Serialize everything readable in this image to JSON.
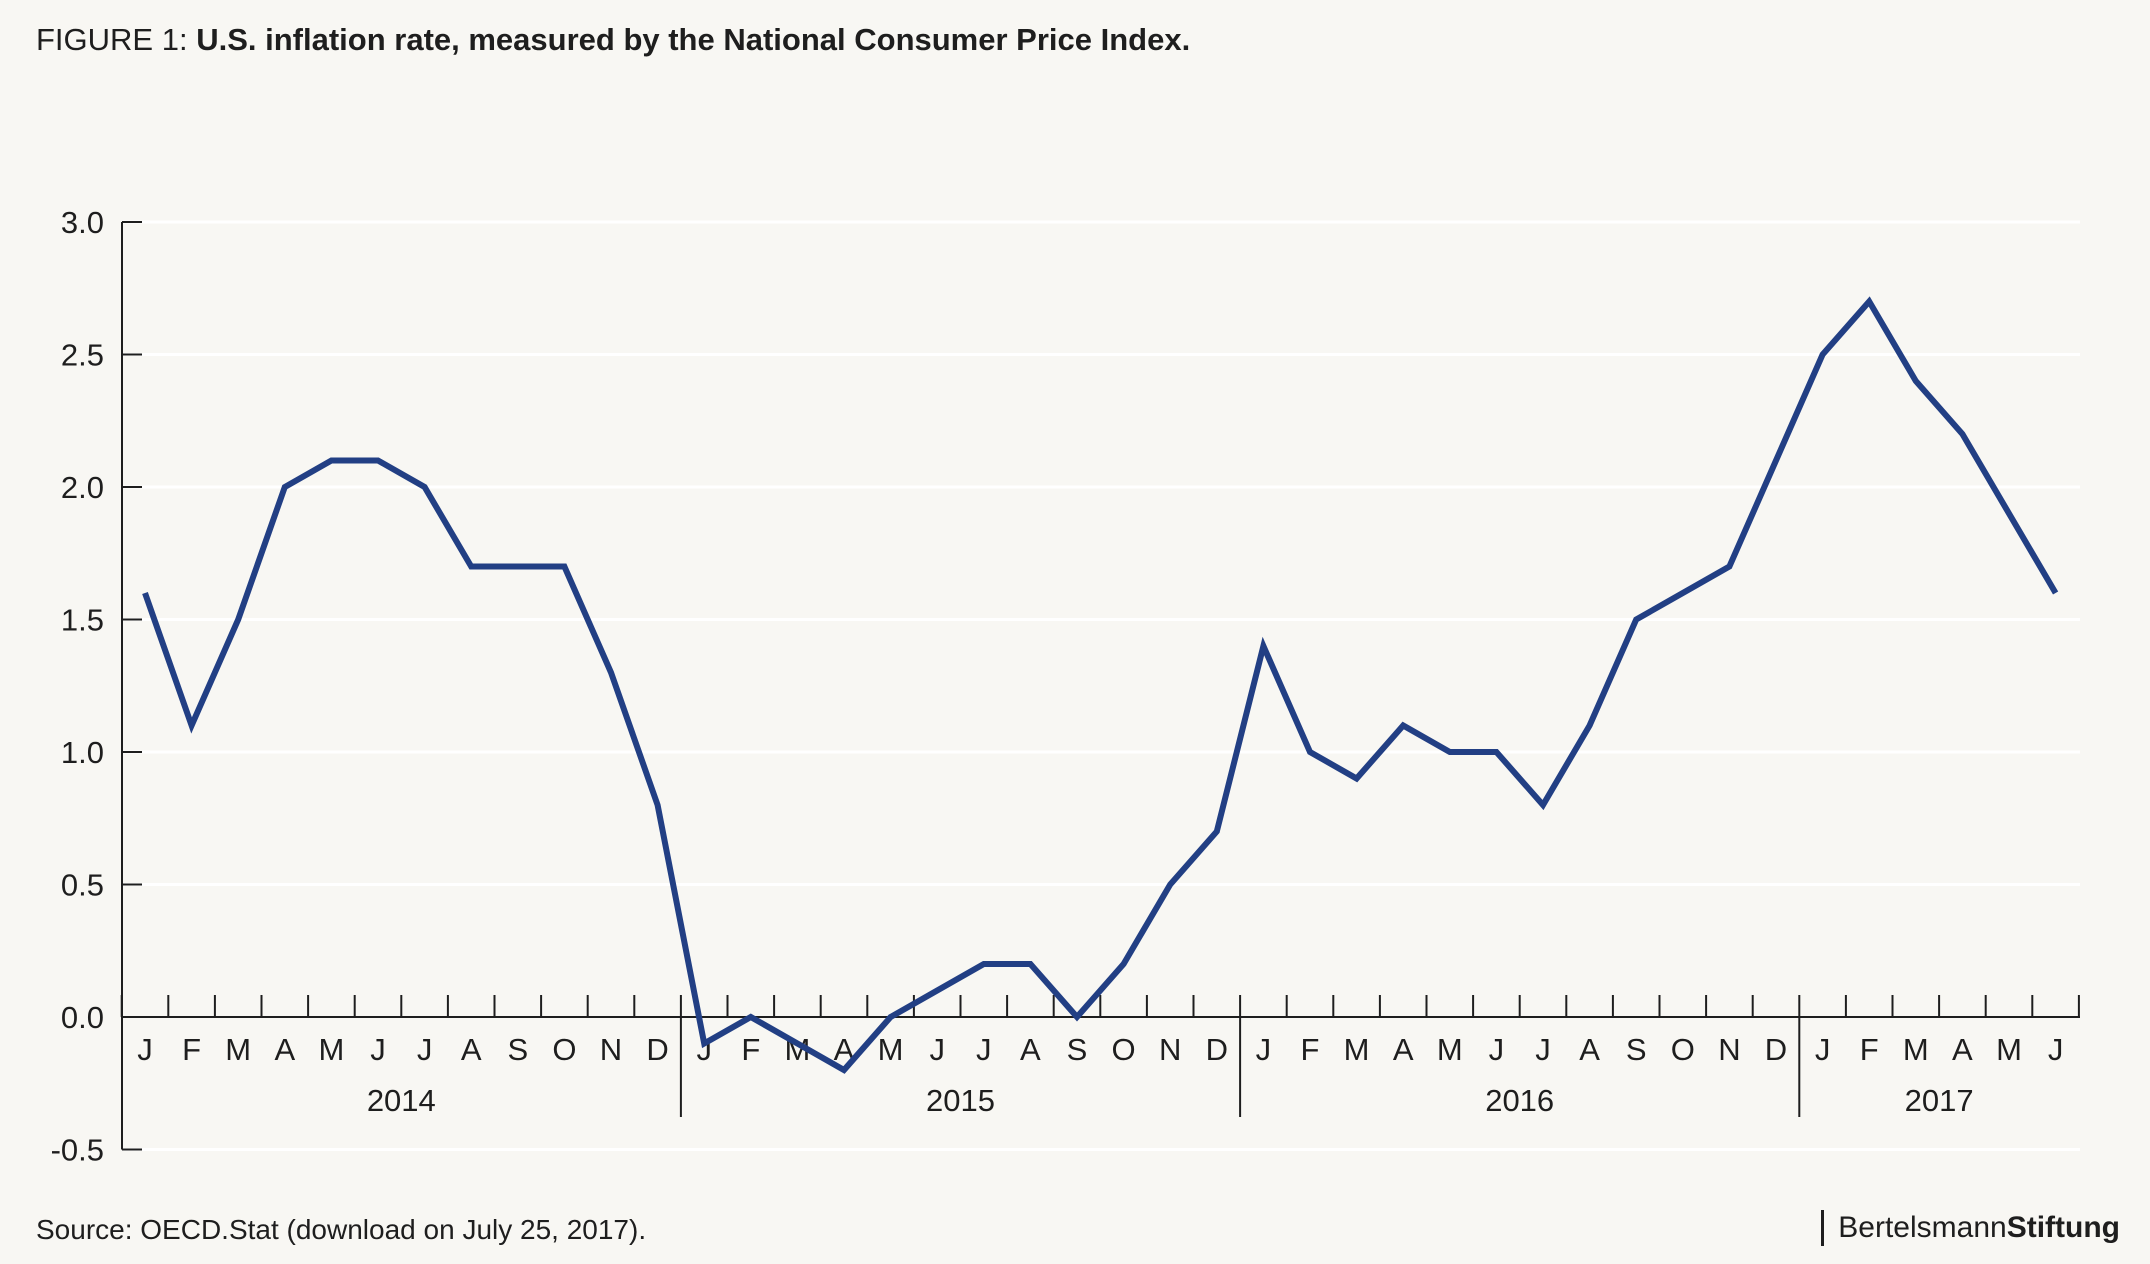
{
  "header": {
    "prefix": "FIGURE 1:",
    "title": "U.S. inflation rate, measured by the National Consumer Price Index."
  },
  "footer": {
    "source": "Source: OECD.Stat (download on July 25, 2017).",
    "brand_regular": "Bertelsmann",
    "brand_bold": "Stiftung"
  },
  "colors": {
    "line": "#223f84",
    "grid": "#ffffff",
    "axis": "#1e1e1e",
    "background": "#f8f7f3"
  },
  "chart_data": {
    "type": "line",
    "title": "U.S. inflation rate, measured by the National Consumer Price Index.",
    "xlabel": "",
    "ylabel": "",
    "ylim": [
      -0.5,
      3.0
    ],
    "yticks": [
      "3.0",
      "2.5",
      "2.0",
      "1.5",
      "1.0",
      "0.5",
      "0.0",
      "-0.5"
    ],
    "ytick_values": [
      3.0,
      2.5,
      2.0,
      1.5,
      1.0,
      0.5,
      0.0,
      -0.5
    ],
    "grid": true,
    "legend": "none",
    "month_labels": [
      "J",
      "F",
      "M",
      "A",
      "M",
      "J",
      "J",
      "A",
      "S",
      "O",
      "N",
      "D",
      "J",
      "F",
      "M",
      "A",
      "M",
      "J",
      "J",
      "A",
      "S",
      "O",
      "N",
      "D",
      "J",
      "F",
      "M",
      "A",
      "M",
      "J",
      "J",
      "A",
      "S",
      "O",
      "N",
      "D",
      "J",
      "F",
      "M",
      "A",
      "M",
      "J"
    ],
    "year_labels": [
      "2014",
      "2015",
      "2016",
      "2017"
    ],
    "x": [
      "2014-01",
      "2014-02",
      "2014-03",
      "2014-04",
      "2014-05",
      "2014-06",
      "2014-07",
      "2014-08",
      "2014-09",
      "2014-10",
      "2014-11",
      "2014-12",
      "2015-01",
      "2015-02",
      "2015-03",
      "2015-04",
      "2015-05",
      "2015-06",
      "2015-07",
      "2015-08",
      "2015-09",
      "2015-10",
      "2015-11",
      "2015-12",
      "2016-01",
      "2016-02",
      "2016-03",
      "2016-04",
      "2016-05",
      "2016-06",
      "2016-07",
      "2016-08",
      "2016-09",
      "2016-10",
      "2016-11",
      "2016-12",
      "2017-01",
      "2017-02",
      "2017-03",
      "2017-04",
      "2017-05",
      "2017-06"
    ],
    "series": [
      {
        "values": [
          1.6,
          1.1,
          1.5,
          2.0,
          2.1,
          2.1,
          2.0,
          1.7,
          1.7,
          1.7,
          1.3,
          0.8,
          -0.1,
          0.0,
          -0.1,
          -0.2,
          0.0,
          0.1,
          0.2,
          0.2,
          0.0,
          0.2,
          0.5,
          0.7,
          1.4,
          1.0,
          0.9,
          1.1,
          1.0,
          1.0,
          0.8,
          1.1,
          1.5,
          1.6,
          1.7,
          2.1,
          2.5,
          2.7,
          2.4,
          2.2,
          1.9,
          1.6
        ]
      }
    ]
  }
}
